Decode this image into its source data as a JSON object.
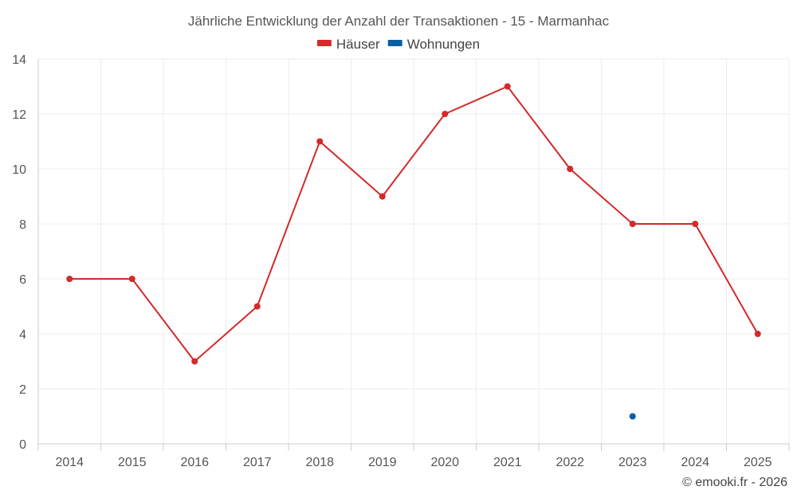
{
  "chart_data": {
    "type": "line",
    "title": "Jährliche Entwicklung der Anzahl der Transaktionen - 15 - Marmanhac",
    "categories": [
      "2014",
      "2015",
      "2016",
      "2017",
      "2018",
      "2019",
      "2020",
      "2021",
      "2022",
      "2023",
      "2024",
      "2025"
    ],
    "series": [
      {
        "name": "Häuser",
        "color": "#d32a2a",
        "values": [
          6,
          6,
          3,
          5,
          11,
          9,
          12,
          13,
          10,
          8,
          8,
          4
        ]
      },
      {
        "name": "Wohnungen",
        "color": "#0a5fa3",
        "values": [
          null,
          null,
          null,
          null,
          null,
          null,
          null,
          null,
          null,
          1,
          null,
          null
        ]
      }
    ],
    "ylim": [
      0,
      14
    ],
    "yticks": [
      0,
      2,
      4,
      6,
      8,
      10,
      12,
      14
    ],
    "grid": true,
    "legend_position": "top-center",
    "credit": "© emooki.fr - 2026"
  }
}
